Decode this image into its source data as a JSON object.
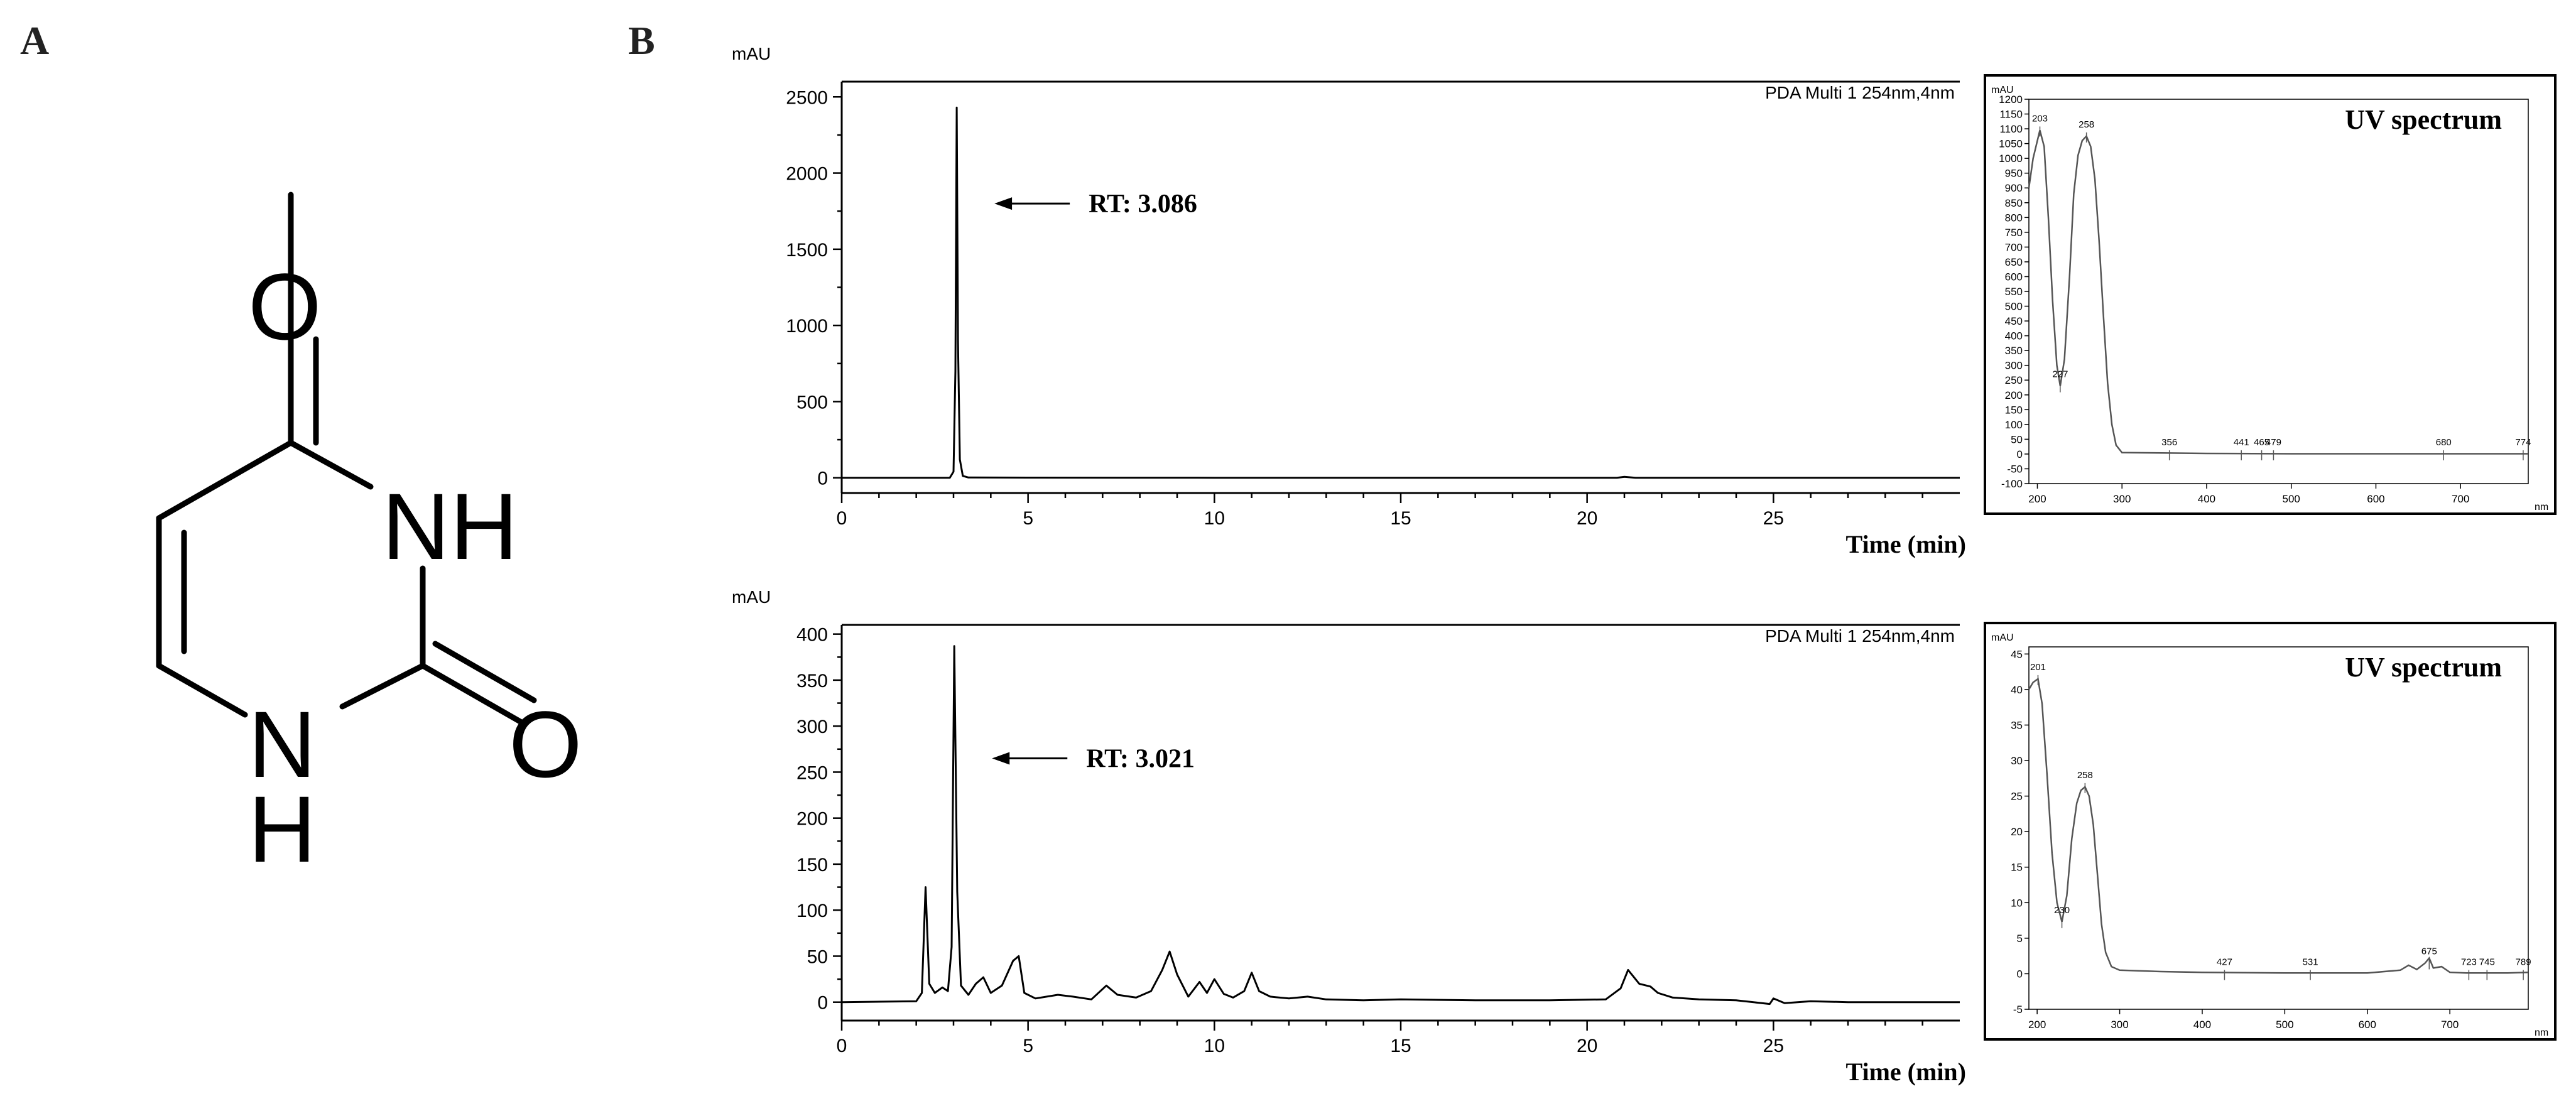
{
  "panels": {
    "a": "A",
    "b": "B"
  },
  "molecule": {
    "atoms": {
      "o_top": "O",
      "nh_right": "NH",
      "o_right": "O",
      "n_bottom": "N",
      "h_bottom": "H"
    }
  },
  "colors": {
    "trace": "#000000",
    "spectrum": "#555555",
    "frame": "#000000"
  },
  "chart_data": [
    {
      "type": "line",
      "title": "",
      "ylabel": "mAU",
      "xlabel": "Time (min)",
      "detector": "PDA Multi 1 254nm,4nm",
      "xlim": [
        0,
        30
      ],
      "ylim": [
        -100,
        2600
      ],
      "xticks": [
        0,
        5,
        10,
        15,
        20,
        25
      ],
      "yticks": [
        0,
        500,
        1000,
        1500,
        2000,
        2500
      ],
      "annotation": {
        "text": "RT: 3.086",
        "x": 3.086,
        "y": 1800
      },
      "x": [
        0,
        2.9,
        3.0,
        3.05,
        3.086,
        3.12,
        3.17,
        3.25,
        3.4,
        5,
        10,
        15,
        20,
        20.8,
        21.0,
        21.3,
        22,
        25,
        30
      ],
      "y": [
        0,
        0,
        40,
        700,
        2430,
        900,
        120,
        12,
        2,
        1,
        0,
        0,
        0,
        0,
        6,
        0,
        0,
        0,
        0
      ]
    },
    {
      "type": "line",
      "title": "UV spectrum",
      "ylabel": "mAU",
      "xlabel": "nm",
      "xlim": [
        190,
        780
      ],
      "ylim": [
        -100,
        1200
      ],
      "xticks": [
        200,
        300,
        400,
        500,
        600,
        700
      ],
      "yticks": [
        -100,
        -50,
        0,
        50,
        100,
        150,
        200,
        250,
        300,
        350,
        400,
        450,
        500,
        550,
        600,
        650,
        700,
        750,
        800,
        850,
        900,
        950,
        1000,
        1050,
        1100,
        1150,
        1200
      ],
      "peak_labels": [
        {
          "text": "203",
          "x": 203,
          "y": 1095
        },
        {
          "text": "227",
          "x": 227,
          "y": 230
        },
        {
          "text": "258",
          "x": 258,
          "y": 1075
        },
        {
          "text": "356",
          "x": 356,
          "y": 0
        },
        {
          "text": "441",
          "x": 441,
          "y": 0
        },
        {
          "text": "465",
          "x": 465,
          "y": 0
        },
        {
          "text": "479",
          "x": 479,
          "y": 0
        },
        {
          "text": "680",
          "x": 680,
          "y": 0
        },
        {
          "text": "774",
          "x": 774,
          "y": 0
        }
      ],
      "x": [
        190,
        195,
        200,
        203,
        208,
        213,
        218,
        223,
        227,
        232,
        238,
        243,
        248,
        253,
        258,
        263,
        268,
        273,
        278,
        283,
        288,
        293,
        300,
        400,
        500,
        600,
        700,
        780
      ],
      "y": [
        900,
        1000,
        1060,
        1095,
        1040,
        800,
        520,
        300,
        230,
        320,
        600,
        880,
        1010,
        1060,
        1075,
        1040,
        930,
        720,
        470,
        240,
        100,
        30,
        5,
        2,
        1,
        1,
        1,
        1
      ]
    },
    {
      "type": "line",
      "title": "",
      "ylabel": "mAU",
      "xlabel": "Time (min)",
      "detector": "PDA Multi 1 254nm,4nm",
      "xlim": [
        0,
        30
      ],
      "ylim": [
        -20,
        410
      ],
      "xticks": [
        0,
        5,
        10,
        15,
        20,
        25
      ],
      "yticks": [
        0,
        50,
        100,
        150,
        200,
        250,
        300,
        350,
        400
      ],
      "annotation": {
        "text": "RT: 3.021",
        "x": 3.021,
        "y": 265
      },
      "x": [
        0,
        2.0,
        2.15,
        2.25,
        2.35,
        2.5,
        2.7,
        2.85,
        2.95,
        3.021,
        3.1,
        3.2,
        3.4,
        3.6,
        3.8,
        4.0,
        4.3,
        4.6,
        4.75,
        4.9,
        5.2,
        5.8,
        6.2,
        6.7,
        7.1,
        7.4,
        7.9,
        8.3,
        8.6,
        8.8,
        9.0,
        9.3,
        9.6,
        9.8,
        10.0,
        10.25,
        10.5,
        10.8,
        11.0,
        11.2,
        11.5,
        12.0,
        12.5,
        13.0,
        14.0,
        15.0,
        17.0,
        19.0,
        20.5,
        20.9,
        21.1,
        21.4,
        21.7,
        21.9,
        22.3,
        23.0,
        24.0,
        24.9,
        25.0,
        25.3,
        26.0,
        27.0,
        30.0
      ],
      "y": [
        0,
        1,
        10,
        125,
        20,
        10,
        16,
        12,
        60,
        387,
        120,
        18,
        8,
        20,
        27,
        10,
        18,
        45,
        50,
        10,
        4,
        8,
        6,
        3,
        18,
        8,
        5,
        12,
        35,
        55,
        30,
        6,
        22,
        10,
        25,
        9,
        5,
        12,
        32,
        12,
        6,
        4,
        6,
        3,
        2,
        3,
        2,
        2,
        3,
        15,
        35,
        20,
        17,
        10,
        5,
        3,
        2,
        -2,
        4,
        -1,
        1,
        0,
        0
      ]
    },
    {
      "type": "line",
      "title": "UV spectrum",
      "ylabel": "mAU",
      "xlabel": "nm",
      "xlim": [
        190,
        795
      ],
      "ylim": [
        -5,
        46
      ],
      "xticks": [
        200,
        300,
        400,
        500,
        600,
        700
      ],
      "yticks": [
        -5,
        0,
        5,
        10,
        15,
        20,
        25,
        30,
        35,
        40,
        45
      ],
      "peak_labels": [
        {
          "text": "201",
          "x": 201,
          "y": 41.5
        },
        {
          "text": "230",
          "x": 230,
          "y": 7.3
        },
        {
          "text": "258",
          "x": 258,
          "y": 26.3
        },
        {
          "text": "427",
          "x": 427,
          "y": 0
        },
        {
          "text": "531",
          "x": 531,
          "y": 0
        },
        {
          "text": "675",
          "x": 675,
          "y": 1.5
        },
        {
          "text": "723",
          "x": 723,
          "y": 0
        },
        {
          "text": "745",
          "x": 745,
          "y": 0
        },
        {
          "text": "789",
          "x": 789,
          "y": 0
        }
      ],
      "x": [
        190,
        195,
        201,
        206,
        212,
        218,
        224,
        230,
        236,
        242,
        248,
        253,
        258,
        263,
        268,
        273,
        278,
        283,
        290,
        300,
        350,
        400,
        500,
        600,
        640,
        650,
        660,
        670,
        675,
        680,
        690,
        700,
        720,
        745,
        770,
        795
      ],
      "y": [
        40,
        41,
        41.5,
        38,
        28,
        17,
        10,
        7.3,
        11,
        19,
        24,
        25.8,
        26.3,
        25,
        21,
        14,
        7,
        3,
        1,
        0.5,
        0.3,
        0.2,
        0.1,
        0.1,
        0.5,
        1.2,
        0.6,
        1.5,
        2.2,
        0.8,
        1.0,
        0.2,
        0.1,
        0.1,
        0.1,
        0.2
      ]
    }
  ]
}
